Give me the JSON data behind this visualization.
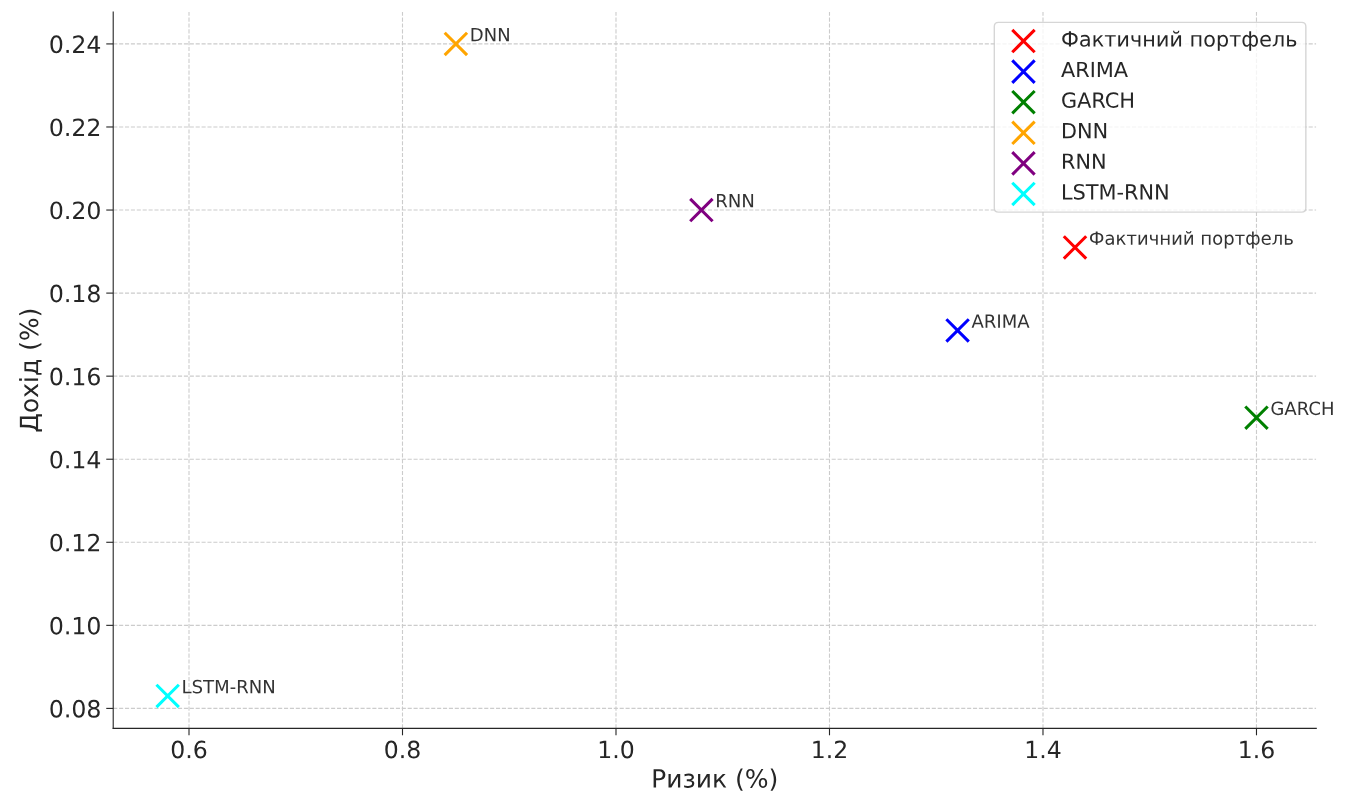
{
  "chart_data": {
    "type": "scatter",
    "xlabel": "Ризик (%)",
    "ylabel": "Дохід (%)",
    "xlim": [
      0.529,
      1.656
    ],
    "ylim": [
      0.0752,
      0.2477
    ],
    "xticks": [
      {
        "value": 0.6,
        "label": "0.6"
      },
      {
        "value": 0.8,
        "label": "0.8"
      },
      {
        "value": 1.0,
        "label": "1.0"
      },
      {
        "value": 1.2,
        "label": "1.2"
      },
      {
        "value": 1.4,
        "label": "1.4"
      },
      {
        "value": 1.6,
        "label": "1.6"
      }
    ],
    "yticks": [
      {
        "value": 0.08,
        "label": "0.08"
      },
      {
        "value": 0.1,
        "label": "0.10"
      },
      {
        "value": 0.12,
        "label": "0.12"
      },
      {
        "value": 0.14,
        "label": "0.14"
      },
      {
        "value": 0.16,
        "label": "0.16"
      },
      {
        "value": 0.18,
        "label": "0.18"
      },
      {
        "value": 0.2,
        "label": "0.20"
      },
      {
        "value": 0.22,
        "label": "0.22"
      },
      {
        "value": 0.24,
        "label": "0.24"
      }
    ],
    "grid": true,
    "legend": "top right",
    "marker": "cross",
    "series": [
      {
        "name": "Фактичний портфель",
        "color": "#ff0000",
        "x": [
          1.43
        ],
        "values": [
          0.191
        ]
      },
      {
        "name": "ARIMA",
        "color": "#0000ff",
        "x": [
          1.32
        ],
        "values": [
          0.171
        ]
      },
      {
        "name": "GARCH",
        "color": "#008000",
        "x": [
          1.6
        ],
        "values": [
          0.15
        ]
      },
      {
        "name": "DNN",
        "color": "#ffa500",
        "x": [
          0.85
        ],
        "values": [
          0.24
        ]
      },
      {
        "name": "RNN",
        "color": "#800080",
        "x": [
          1.08
        ],
        "values": [
          0.2
        ]
      },
      {
        "name": "LSTM-RNN",
        "color": "#00ffff",
        "x": [
          0.58
        ],
        "values": [
          0.083
        ]
      }
    ],
    "annotations": [
      {
        "text": "Фактичний портфель",
        "x": 1.43,
        "y": 0.191
      },
      {
        "text": "ARIMA",
        "x": 1.32,
        "y": 0.171
      },
      {
        "text": "GARCH",
        "x": 1.6,
        "y": 0.15
      },
      {
        "text": "DNN",
        "x": 0.85,
        "y": 0.24
      },
      {
        "text": "RNN",
        "x": 1.08,
        "y": 0.2
      },
      {
        "text": "LSTM-RNN",
        "x": 0.58,
        "y": 0.083
      }
    ]
  }
}
